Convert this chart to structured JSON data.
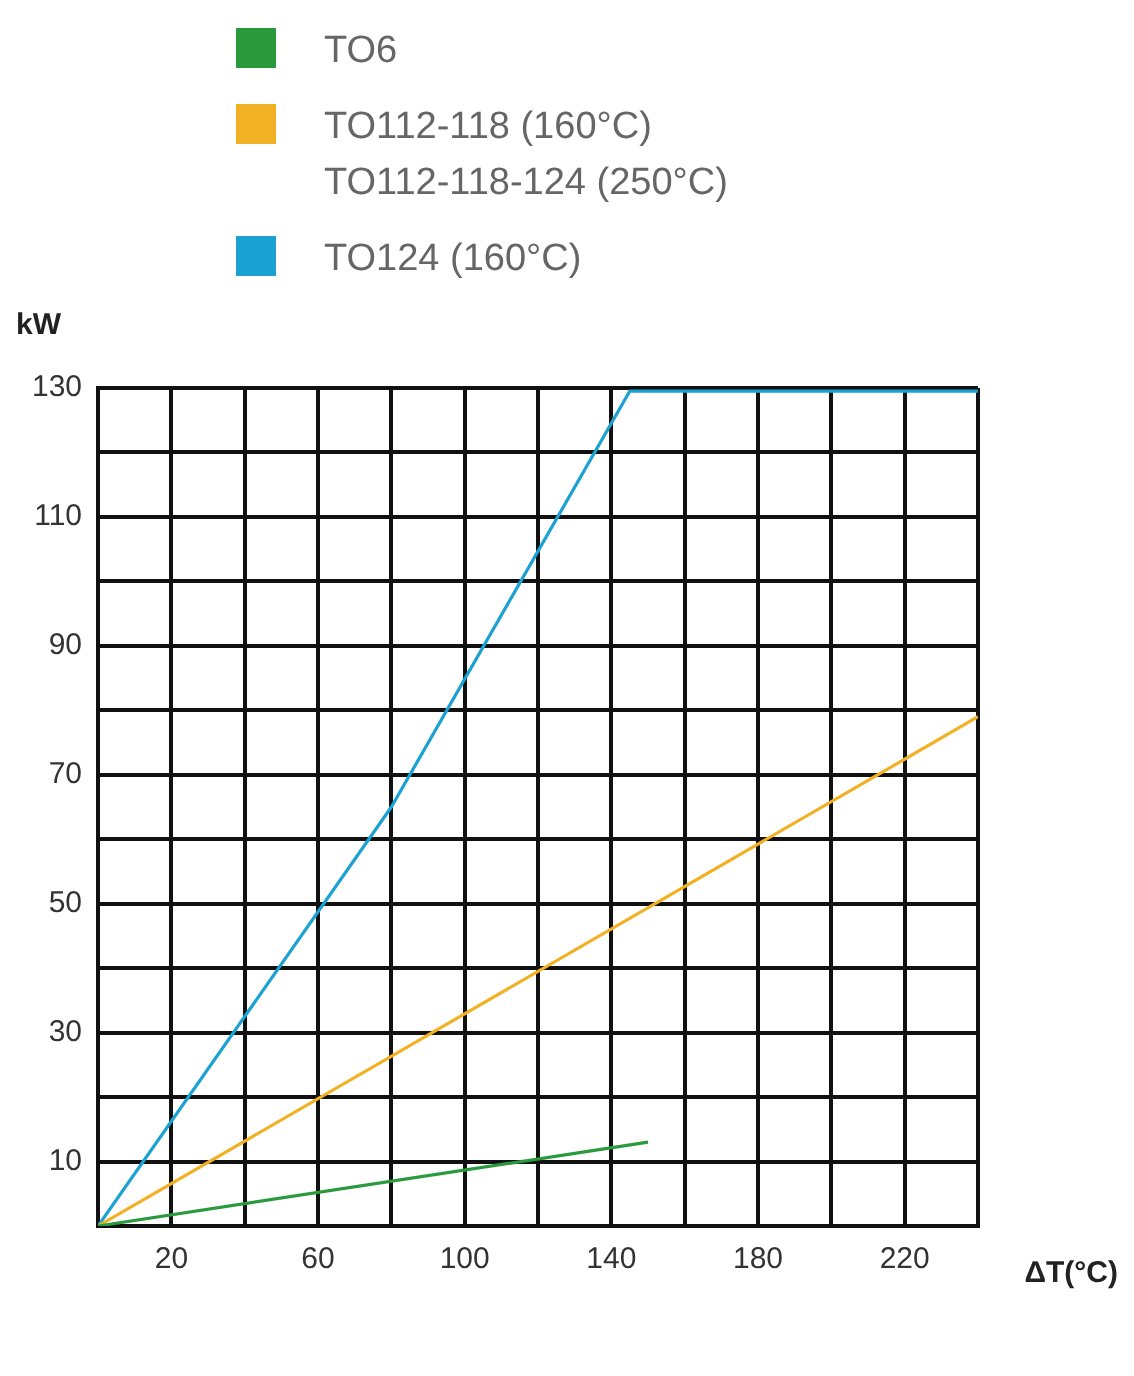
{
  "chart_data": {
    "type": "line",
    "xlabel": "ΔT(°C)",
    "ylabel": "kW",
    "xlim": [
      0,
      240
    ],
    "ylim": [
      0,
      130
    ],
    "xticks": [
      {
        "value": 0,
        "label": null
      },
      20,
      {
        "value": 40,
        "label": null
      },
      60,
      {
        "value": 80,
        "label": null
      },
      100,
      {
        "value": 120,
        "label": null
      },
      140,
      {
        "value": 160,
        "label": null
      },
      180,
      {
        "value": 200,
        "label": null
      },
      220,
      {
        "value": 240,
        "label": null
      }
    ],
    "yticks": [
      {
        "value": 0,
        "label": null
      },
      10,
      {
        "value": 20,
        "label": null
      },
      30,
      {
        "value": 40,
        "label": null
      },
      50,
      {
        "value": 60,
        "label": null
      },
      70,
      {
        "value": 80,
        "label": null
      },
      90,
      {
        "value": 100,
        "label": null
      },
      110,
      {
        "value": 120,
        "label": null
      },
      130
    ],
    "grid": true,
    "legend": "top",
    "marker": "none",
    "line_style": "solid",
    "series": [
      {
        "name": "TO6",
        "color": "#2b9a3e",
        "x": [
          0,
          150
        ],
        "values": [
          0,
          13
        ]
      },
      {
        "name": "TO112-118 (160°C)\nTO112-118-124 (250°C)",
        "color": "#f2b124",
        "x": [
          0,
          240
        ],
        "values": [
          0,
          79
        ]
      },
      {
        "name": "TO124 (160°C)",
        "color": "#1ba1d2",
        "x": [
          0,
          80,
          145,
          240
        ],
        "values": [
          0,
          65,
          129.5,
          129.5
        ]
      }
    ]
  }
}
